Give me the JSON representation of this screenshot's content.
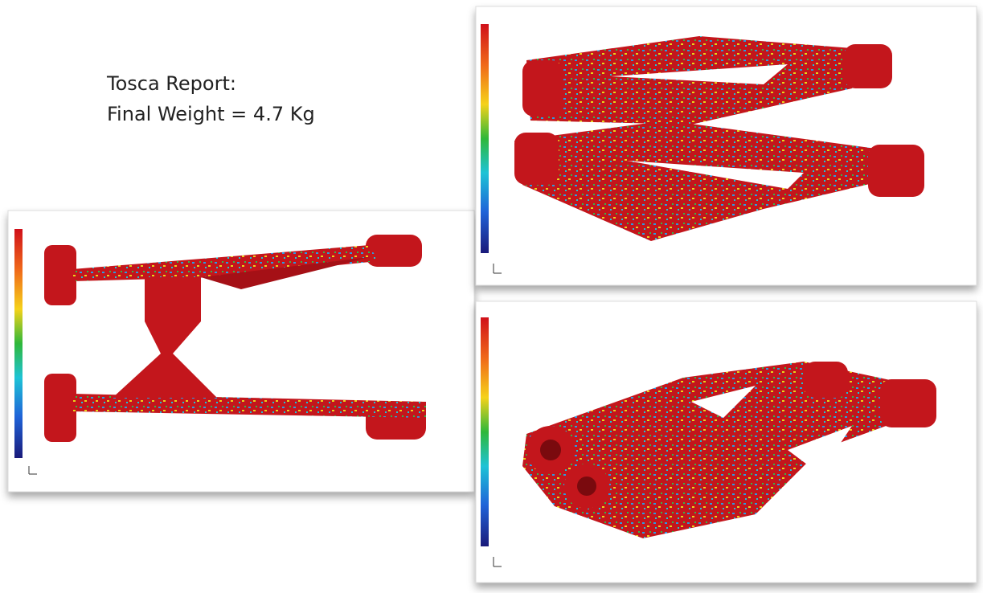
{
  "slide": {
    "caption_lines": [
      "Tosca Report:",
      "Final Weight = 4.7 Kg"
    ]
  }
}
